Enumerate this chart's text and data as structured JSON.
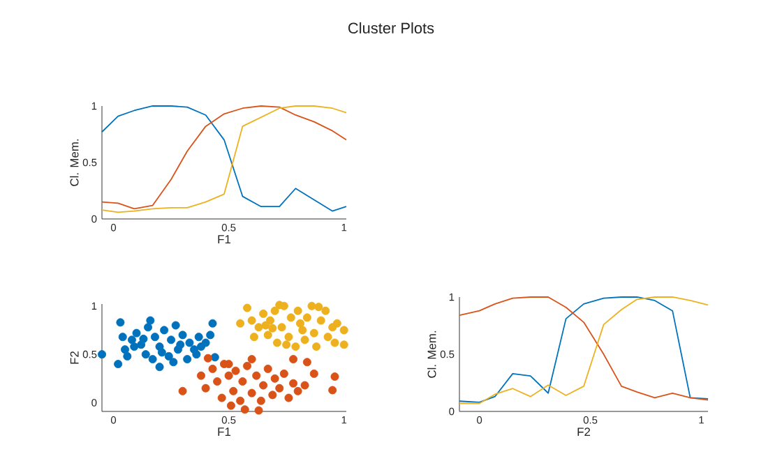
{
  "chart_data": [
    {
      "type": "line",
      "title": "Cluster Plots",
      "xlabel": "F1",
      "ylabel": "Cl. Mem.",
      "xlim": [
        -0.05,
        1.01
      ],
      "ylim": [
        0,
        1
      ],
      "xticks": [
        0,
        0.5,
        1
      ],
      "yticks": [
        0,
        0.5,
        1
      ],
      "grid": false,
      "marker": "none",
      "line_style": "solid",
      "x": [
        -0.05,
        0.02,
        0.09,
        0.17,
        0.25,
        0.32,
        0.4,
        0.48,
        0.56,
        0.64,
        0.72,
        0.79,
        0.87,
        0.95,
        1.01
      ],
      "series": [
        {
          "color": "#0072bd",
          "values": [
            0.77,
            0.91,
            0.96,
            1.0,
            1.0,
            0.99,
            0.92,
            0.7,
            0.2,
            0.11,
            0.11,
            0.27,
            0.17,
            0.07,
            0.11
          ]
        },
        {
          "color": "#d95319",
          "values": [
            0.15,
            0.14,
            0.09,
            0.12,
            0.35,
            0.6,
            0.82,
            0.93,
            0.98,
            1.0,
            0.99,
            0.92,
            0.86,
            0.78,
            0.7
          ]
        },
        {
          "color": "#edb120",
          "values": [
            0.08,
            0.06,
            0.07,
            0.09,
            0.1,
            0.1,
            0.15,
            0.22,
            0.82,
            0.9,
            0.98,
            1.0,
            1.0,
            0.98,
            0.94
          ]
        }
      ]
    },
    {
      "type": "scatter",
      "xlabel": "F1",
      "ylabel": "F2",
      "xlim": [
        -0.05,
        1.01
      ],
      "ylim": [
        -0.09,
        1.02
      ],
      "xticks": [
        0,
        0.5,
        1
      ],
      "yticks": [
        0,
        0.5,
        1
      ],
      "grid": false,
      "marker": "circle",
      "series": [
        {
          "color": "#0072bd",
          "x": [
            -0.05,
            0.03,
            0.16,
            0.43,
            0.44,
            0.2,
            0.02,
            0.05,
            0.08,
            0.1,
            0.12,
            0.14,
            0.15,
            0.18,
            0.2,
            0.22,
            0.24,
            0.25,
            0.27,
            0.28,
            0.3,
            0.32,
            0.33,
            0.35,
            0.37,
            0.4,
            0.42,
            0.06,
            0.09,
            0.17,
            0.26,
            0.04,
            0.13,
            0.21,
            0.29,
            0.36,
            0.38
          ],
          "values": [
            0.5,
            0.83,
            0.85,
            0.82,
            0.47,
            0.37,
            0.4,
            0.55,
            0.65,
            0.72,
            0.6,
            0.5,
            0.78,
            0.68,
            0.58,
            0.75,
            0.48,
            0.65,
            0.8,
            0.55,
            0.7,
            0.45,
            0.62,
            0.55,
            0.68,
            0.62,
            0.7,
            0.48,
            0.58,
            0.45,
            0.42,
            0.68,
            0.66,
            0.52,
            0.6,
            0.5,
            0.58
          ]
        },
        {
          "color": "#d95319",
          "x": [
            0.3,
            0.41,
            0.57,
            0.63,
            0.84,
            0.87,
            0.96,
            0.95,
            0.83,
            0.78,
            0.38,
            0.4,
            0.43,
            0.45,
            0.47,
            0.48,
            0.5,
            0.52,
            0.53,
            0.55,
            0.56,
            0.58,
            0.6,
            0.62,
            0.64,
            0.65,
            0.67,
            0.69,
            0.7,
            0.72,
            0.74,
            0.76,
            0.78,
            0.8,
            0.5,
            0.6,
            0.51
          ],
          "values": [
            0.12,
            0.46,
            -0.07,
            -0.08,
            0.42,
            0.3,
            0.27,
            0.13,
            0.18,
            0.45,
            0.28,
            0.15,
            0.35,
            0.22,
            0.05,
            0.4,
            0.28,
            0.12,
            0.33,
            0.02,
            0.22,
            0.38,
            0.1,
            0.28,
            0.02,
            0.18,
            0.35,
            0.08,
            0.25,
            0.15,
            0.3,
            0.05,
            0.2,
            0.12,
            0.4,
            0.45,
            -0.03
          ]
        },
        {
          "color": "#edb120",
          "x": [
            0.58,
            0.55,
            0.97,
            1.0,
            1.0,
            0.61,
            0.6,
            0.63,
            0.65,
            0.67,
            0.68,
            0.7,
            0.71,
            0.73,
            0.74,
            0.76,
            0.77,
            0.79,
            0.8,
            0.82,
            0.83,
            0.84,
            0.86,
            0.87,
            0.88,
            0.9,
            0.92,
            0.93,
            0.95,
            0.96,
            0.69,
            0.72,
            0.81,
            0.89,
            0.75,
            0.66
          ],
          "values": [
            0.98,
            0.82,
            0.82,
            0.75,
            0.6,
            0.68,
            0.85,
            0.78,
            0.92,
            0.7,
            0.85,
            0.95,
            0.62,
            0.78,
            1.0,
            0.68,
            0.88,
            0.58,
            0.95,
            0.75,
            0.65,
            0.88,
            1.0,
            0.72,
            0.58,
            0.85,
            0.95,
            0.68,
            0.78,
            0.62,
            0.77,
            1.01,
            0.82,
            0.99,
            0.6,
            0.8
          ]
        }
      ]
    },
    {
      "type": "line",
      "xlabel": "F2",
      "ylabel": "Cl. Mem.",
      "xlim": [
        -0.09,
        1.03
      ],
      "ylim": [
        0,
        1
      ],
      "xticks": [
        0,
        0.5,
        1
      ],
      "yticks": [
        0,
        0.5,
        1
      ],
      "grid": false,
      "marker": "none",
      "line_style": "solid",
      "x": [
        -0.09,
        0,
        0.07,
        0.15,
        0.23,
        0.31,
        0.39,
        0.47,
        0.56,
        0.64,
        0.71,
        0.79,
        0.87,
        0.95,
        1.03
      ],
      "series": [
        {
          "color": "#0072bd",
          "values": [
            0.09,
            0.08,
            0.13,
            0.33,
            0.31,
            0.16,
            0.81,
            0.94,
            0.99,
            1.0,
            1.0,
            0.97,
            0.88,
            0.12,
            0.11
          ]
        },
        {
          "color": "#d95319",
          "values": [
            0.84,
            0.88,
            0.94,
            0.99,
            1.0,
            1.0,
            0.91,
            0.78,
            0.5,
            0.22,
            0.17,
            0.12,
            0.16,
            0.12,
            0.1
          ]
        },
        {
          "color": "#edb120",
          "values": [
            0.07,
            0.07,
            0.15,
            0.2,
            0.13,
            0.23,
            0.14,
            0.22,
            0.76,
            0.89,
            0.98,
            1.0,
            1.0,
            0.97,
            0.93
          ]
        }
      ]
    }
  ]
}
